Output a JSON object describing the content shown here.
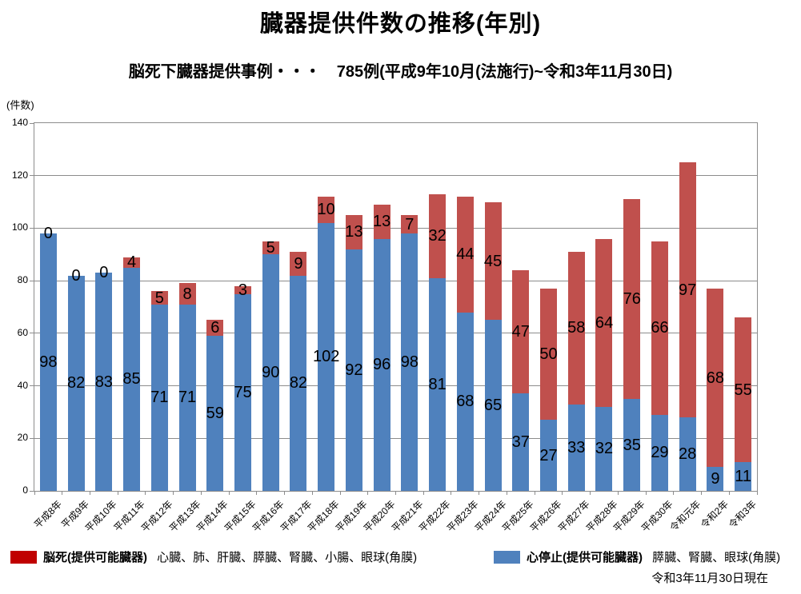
{
  "chart_data": {
    "type": "bar",
    "stacked": true,
    "title": "臓器提供件数の推移(年別)",
    "subtitle": "脳死下臓器提供事例・・・　785例(平成9年10月(法施行)~令和3年11月30日)",
    "unit_label": "(件数)",
    "ylim": [
      0,
      140
    ],
    "ytick_interval": 20,
    "grid": true,
    "legend_position": "bottom",
    "categories": [
      "平成8年",
      "平成9年",
      "平成10年",
      "平成11年",
      "平成12年",
      "平成13年",
      "平成14年",
      "平成15年",
      "平成16年",
      "平成17年",
      "平成18年",
      "平成19年",
      "平成20年",
      "平成21年",
      "平成22年",
      "平成23年",
      "平成24年",
      "平成25年",
      "平成26年",
      "平成27年",
      "平成28年",
      "平成29年",
      "平成30年",
      "令和元年",
      "令和2年",
      "令和3年"
    ],
    "series": [
      {
        "name": "心停止(提供可能臓器)",
        "color": "#4F81BD",
        "values": [
          98,
          82,
          83,
          85,
          71,
          71,
          59,
          75,
          90,
          82,
          102,
          92,
          96,
          98,
          81,
          68,
          65,
          37,
          27,
          33,
          32,
          35,
          29,
          28,
          9,
          11
        ]
      },
      {
        "name": "脳死(提供可能臓器)",
        "color": "#C0504D",
        "values": [
          0,
          0,
          0,
          4,
          5,
          8,
          6,
          3,
          5,
          9,
          10,
          13,
          13,
          7,
          32,
          44,
          45,
          47,
          50,
          58,
          64,
          76,
          66,
          97,
          68,
          55
        ]
      }
    ]
  },
  "legend": {
    "brain_death": {
      "label": "脳死(提供可能臓器)",
      "organs": "心臓、肺、肝臓、膵臓、腎臓、小腸、眼球(角膜)",
      "swatch_color": "#C00000"
    },
    "cardiac_arrest": {
      "label": "心停止(提供可能臓器)",
      "organs": "膵臓、腎臓、眼球(角膜)",
      "swatch_color": "#4F81BD"
    }
  },
  "footer_note": "令和3年11月30日現在",
  "colors": {
    "blue_bar": "#4F81BD",
    "red_bar": "#C0504D",
    "gridline": "#8C8C8C",
    "axis_border": "#8C8C8C"
  }
}
